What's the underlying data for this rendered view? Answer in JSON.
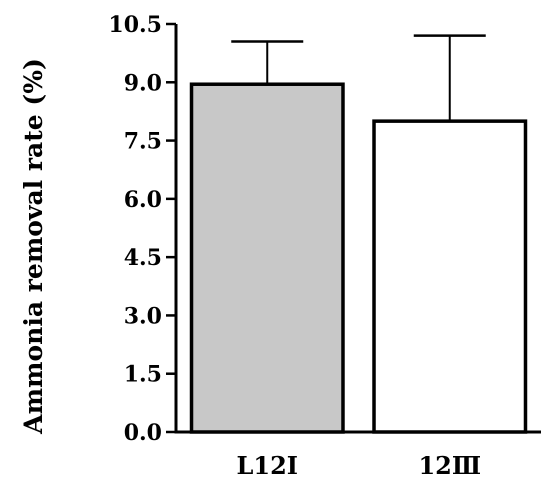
{
  "chart_data": {
    "type": "bar",
    "title": "",
    "xlabel": "",
    "ylabel": "Ammonia removal rate (%)",
    "ylim": [
      0,
      10.5
    ],
    "yticks": [
      "0.0",
      "1.5",
      "3.0",
      "4.5",
      "6.0",
      "7.5",
      "9.0",
      "10.5"
    ],
    "categories": [
      "L12Ⅰ",
      "12Ⅲ"
    ],
    "values": [
      8.95,
      8.0
    ],
    "error_upper": [
      1.1,
      2.2
    ],
    "bar_colors": [
      "#c8c8c8",
      "#ffffff"
    ],
    "edge_color": "#000000",
    "grid": false,
    "legend": "none"
  }
}
